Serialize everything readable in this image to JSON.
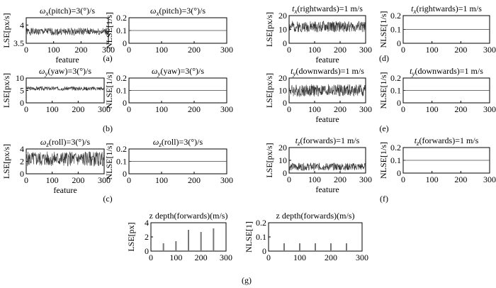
{
  "subfigure_labels": [
    "(a)",
    "(b)",
    "(c)",
    "(d)",
    "(e)",
    "(f)",
    "(g)"
  ],
  "chart_data": [
    {
      "id": "a_lse",
      "type": "line",
      "title": "ωx(pitch)=3(°)/s",
      "title_symbol": "ω",
      "title_sub": "x",
      "title_rest": "(pitch)=3(°)/s",
      "xlabel": "feature",
      "ylabel": "LSE[px/s]",
      "xlim": [
        0,
        300
      ],
      "ylim": [
        3.5,
        4.2
      ],
      "xticks": [
        "0",
        "100",
        "200",
        "300"
      ],
      "yticks": [
        "3.5",
        "4"
      ],
      "ytick_values": [
        3.5,
        4
      ],
      "noise": {
        "n": 300,
        "mean": 3.82,
        "amp": 0.1,
        "seed": 1
      },
      "grid": false,
      "legend": "none"
    },
    {
      "id": "a_nlse",
      "type": "line",
      "title": "ωx(pitch)=3(°)/s",
      "title_symbol": "ω",
      "title_sub": "x",
      "title_rest": "(pitch)=3(°)/s",
      "xlabel": "",
      "ylabel": "NLSE[1/s]",
      "xlim": [
        0,
        300
      ],
      "ylim": [
        0,
        0.2
      ],
      "xticks": [
        "0",
        "100",
        "200",
        "300"
      ],
      "yticks": [
        "0",
        "0.1",
        "0.2"
      ],
      "ytick_values": [
        0,
        0.1,
        0.2
      ],
      "x": [
        0,
        300
      ],
      "y": [
        0.1,
        0.1
      ],
      "grid": false,
      "legend": "none"
    },
    {
      "id": "d_lse",
      "type": "line",
      "title": "tx(rightwards)=1 m/s",
      "title_symbol": "t",
      "title_sub": "x",
      "title_rest": "(rightwards)=1 m/s",
      "xlabel": "feature",
      "ylabel": "LSE[px/s]",
      "xlim": [
        0,
        300
      ],
      "ylim": [
        0,
        20
      ],
      "xticks": [
        "0",
        "100",
        "200",
        "300"
      ],
      "yticks": [
        "0",
        "10",
        "20"
      ],
      "ytick_values": [
        0,
        10,
        20
      ],
      "noise": {
        "n": 300,
        "mean": 12,
        "amp": 4,
        "seed": 2
      },
      "grid": false,
      "legend": "none"
    },
    {
      "id": "d_nlse",
      "type": "line",
      "title": "tx(rightwards)=1 m/s",
      "title_symbol": "t",
      "title_sub": "x",
      "title_rest": "(rightwards)=1 m/s",
      "xlabel": "",
      "ylabel": "NLSE[1/s]",
      "xlim": [
        0,
        300
      ],
      "ylim": [
        0,
        0.2
      ],
      "xticks": [
        "0",
        "100",
        "200",
        "300"
      ],
      "yticks": [
        "0",
        "0.1",
        "0.2"
      ],
      "ytick_values": [
        0,
        0.1,
        0.2
      ],
      "x": [
        0,
        300
      ],
      "y": [
        0.1,
        0.1
      ],
      "grid": false,
      "legend": "none"
    },
    {
      "id": "b_lse",
      "type": "line",
      "title": "ωy(yaw)=3(°)/s",
      "title_symbol": "ω",
      "title_sub": "y",
      "title_rest": "(yaw)=3(°)/s",
      "xlabel": "",
      "ylabel": "LSE[px/s]",
      "xlim": [
        0,
        300
      ],
      "ylim": [
        0,
        10
      ],
      "xticks": [
        "0",
        "100",
        "200",
        "300"
      ],
      "yticks": [
        "0",
        "5",
        "10"
      ],
      "ytick_values": [
        0,
        5,
        10
      ],
      "noise": {
        "n": 300,
        "mean": 5.8,
        "amp": 0.8,
        "seed": 3
      },
      "grid": false,
      "legend": "none"
    },
    {
      "id": "b_nlse",
      "type": "line",
      "title": "ωy(yaw)=3(°)/s",
      "title_symbol": "ω",
      "title_sub": "y",
      "title_rest": "(yaw)=3(°)/s",
      "xlabel": "",
      "ylabel": "NLSE[1/s]",
      "xlim": [
        0,
        300
      ],
      "ylim": [
        0,
        0.2
      ],
      "xticks": [
        "0",
        "100",
        "200",
        "300"
      ],
      "yticks": [
        "0",
        "0.1",
        "0.2"
      ],
      "ytick_values": [
        0,
        0.1,
        0.2
      ],
      "x": [
        0,
        300
      ],
      "y": [
        0.1,
        0.1
      ],
      "grid": false,
      "legend": "none"
    },
    {
      "id": "e_lse",
      "type": "line",
      "title": "ty(downwards)=1 m/s",
      "title_symbol": "t",
      "title_sub": "y",
      "title_rest": "(downwards)=1 m/s",
      "xlabel": "feature",
      "ylabel": "LSE[px/s]",
      "xlim": [
        0,
        300
      ],
      "ylim": [
        0,
        20
      ],
      "xticks": [
        "0",
        "100",
        "200",
        "300"
      ],
      "yticks": [
        "0",
        "10",
        "20"
      ],
      "ytick_values": [
        0,
        10,
        20
      ],
      "noise": {
        "n": 300,
        "mean": 10,
        "amp": 5,
        "seed": 4
      },
      "grid": false,
      "legend": "none"
    },
    {
      "id": "e_nlse",
      "type": "line",
      "title": "ty(downwards)=1 m/s",
      "title_symbol": "t",
      "title_sub": "y",
      "title_rest": "(downwards)=1 m/s",
      "xlabel": "",
      "ylabel": "NLSE[1/s]",
      "xlim": [
        0,
        300
      ],
      "ylim": [
        0,
        0.2
      ],
      "xticks": [
        "0",
        "100",
        "200",
        "300"
      ],
      "yticks": [
        "0",
        "0.1",
        "0.2"
      ],
      "ytick_values": [
        0,
        0.1,
        0.2
      ],
      "x": [
        0,
        300
      ],
      "y": [
        0.1,
        0.1
      ],
      "grid": false,
      "legend": "none"
    },
    {
      "id": "c_lse",
      "type": "line",
      "title": "ωz(roll)=3(°)/s",
      "title_symbol": "ω",
      "title_sub": "z",
      "title_rest": "(roll)=3(°)/s",
      "xlabel": "feature",
      "ylabel": "LSE[px/s]",
      "xlim": [
        0,
        300
      ],
      "ylim": [
        0,
        4
      ],
      "xticks": [
        "0",
        "100",
        "200",
        "300"
      ],
      "yticks": [
        "0",
        "2",
        "4"
      ],
      "ytick_values": [
        0,
        2,
        4
      ],
      "noise": {
        "n": 300,
        "mean": 2.4,
        "amp": 1.2,
        "seed": 5
      },
      "grid": false,
      "legend": "none"
    },
    {
      "id": "c_nlse",
      "type": "line",
      "title": "ωz(roll)=3(°)/s",
      "title_symbol": "ω",
      "title_sub": "z",
      "title_rest": "(roll)=3(°)/s",
      "xlabel": "",
      "ylabel": "NLSE[1/s]",
      "xlim": [
        0,
        300
      ],
      "ylim": [
        0,
        0.2
      ],
      "xticks": [
        "0",
        "100",
        "200",
        "300"
      ],
      "yticks": [
        "0",
        "0.1",
        "0.2"
      ],
      "ytick_values": [
        0,
        0.1,
        0.2
      ],
      "x": [
        0,
        300
      ],
      "y": [
        0.1,
        0.1
      ],
      "grid": false,
      "legend": "none"
    },
    {
      "id": "f_lse",
      "type": "line",
      "title": "tz(forwards)=1 m/s",
      "title_symbol": "t",
      "title_sub": "z",
      "title_rest": "(forwards)=1 m/s",
      "xlabel": "feature",
      "ylabel": "LSE[px/s]",
      "xlim": [
        0,
        300
      ],
      "ylim": [
        0,
        20
      ],
      "xticks": [
        "0",
        "100",
        "200",
        "300"
      ],
      "yticks": [
        "0",
        "10",
        "20"
      ],
      "ytick_values": [
        0,
        10,
        20
      ],
      "noise": {
        "n": 300,
        "mean": 5,
        "amp": 3,
        "seed": 6
      },
      "grid": false,
      "legend": "none"
    },
    {
      "id": "f_nlse",
      "type": "line",
      "title": "tz(forwards)=1 m/s",
      "title_symbol": "t",
      "title_sub": "z",
      "title_rest": "(forwards)=1 m/s",
      "xlabel": "",
      "ylabel": "NLSE[1/s]",
      "xlim": [
        0,
        300
      ],
      "ylim": [
        0,
        0.2
      ],
      "xticks": [
        "0",
        "100",
        "200",
        "300"
      ],
      "yticks": [
        "0",
        "0.1",
        "0.2"
      ],
      "ytick_values": [
        0,
        0.1,
        0.2
      ],
      "x": [
        0,
        300
      ],
      "y": [
        0.1,
        0.1
      ],
      "grid": false,
      "legend": "none"
    },
    {
      "id": "g_lse",
      "type": "bar",
      "title": "z depth(forwards)(m/s)",
      "xlabel": "",
      "ylabel": "LSE[px]",
      "xlim": [
        0,
        300
      ],
      "ylim": [
        0,
        4
      ],
      "xticks": [
        "0",
        "100",
        "200",
        "300"
      ],
      "yticks": [
        "0",
        "2",
        "4"
      ],
      "ytick_values": [
        0,
        2,
        4
      ],
      "x": [
        50,
        100,
        150,
        200,
        250
      ],
      "values": [
        1.1,
        1.4,
        3.0,
        2.7,
        3.2
      ],
      "grid": false,
      "legend": "none"
    },
    {
      "id": "g_nlse",
      "type": "bar",
      "title": "z depth(forwards)(m/s)",
      "xlabel": "",
      "ylabel": "NLSE[1]",
      "xlim": [
        0,
        300
      ],
      "ylim": [
        0,
        0.2
      ],
      "xticks": [
        "0",
        "100",
        "200",
        "300"
      ],
      "yticks": [
        "0",
        "0.1",
        "0.2"
      ],
      "ytick_values": [
        0,
        0.1,
        0.2
      ],
      "x": [
        50,
        100,
        150,
        200,
        250
      ],
      "values": [
        0.055,
        0.055,
        0.055,
        0.055,
        0.055
      ],
      "grid": false,
      "legend": "none"
    }
  ]
}
